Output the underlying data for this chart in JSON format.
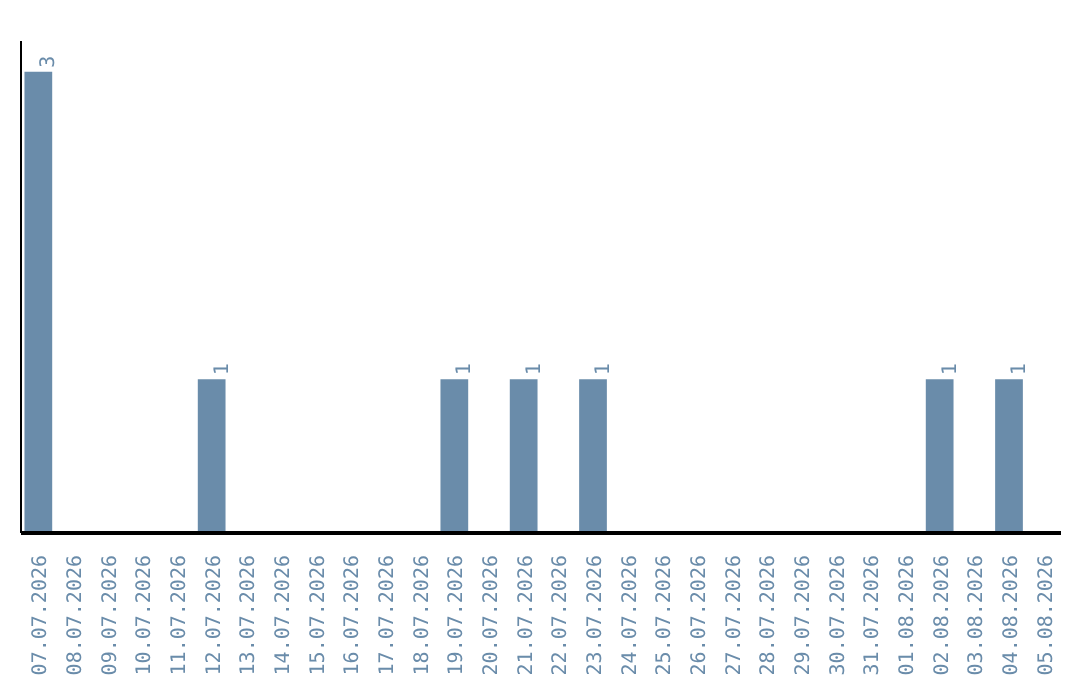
{
  "chart_data": {
    "type": "bar",
    "categories": [
      "07.07.2026",
      "08.07.2026",
      "09.07.2026",
      "10.07.2026",
      "11.07.2026",
      "12.07.2026",
      "13.07.2026",
      "14.07.2026",
      "15.07.2026",
      "16.07.2026",
      "17.07.2026",
      "18.07.2026",
      "19.07.2026",
      "20.07.2026",
      "21.07.2026",
      "22.07.2026",
      "23.07.2026",
      "24.07.2026",
      "25.07.2026",
      "26.07.2026",
      "27.07.2026",
      "28.07.2026",
      "29.07.2026",
      "30.07.2026",
      "31.07.2026",
      "01.08.2026",
      "02.08.2026",
      "03.08.2026",
      "04.08.2026",
      "05.08.2026"
    ],
    "values": [
      3,
      0,
      0,
      0,
      0,
      1,
      0,
      0,
      0,
      0,
      0,
      0,
      1,
      0,
      1,
      0,
      1,
      0,
      0,
      0,
      0,
      0,
      0,
      0,
      0,
      0,
      1,
      0,
      1,
      0
    ],
    "value_labels": [
      "3",
      null,
      null,
      null,
      null,
      "1",
      null,
      null,
      null,
      null,
      null,
      null,
      "1",
      null,
      "1",
      null,
      "1",
      null,
      null,
      null,
      null,
      null,
      null,
      null,
      null,
      null,
      "1",
      null,
      "1",
      null
    ],
    "color": "#6a8caa",
    "ylim": [
      0,
      3.2
    ],
    "tick_labels": "x",
    "grid": false
  }
}
